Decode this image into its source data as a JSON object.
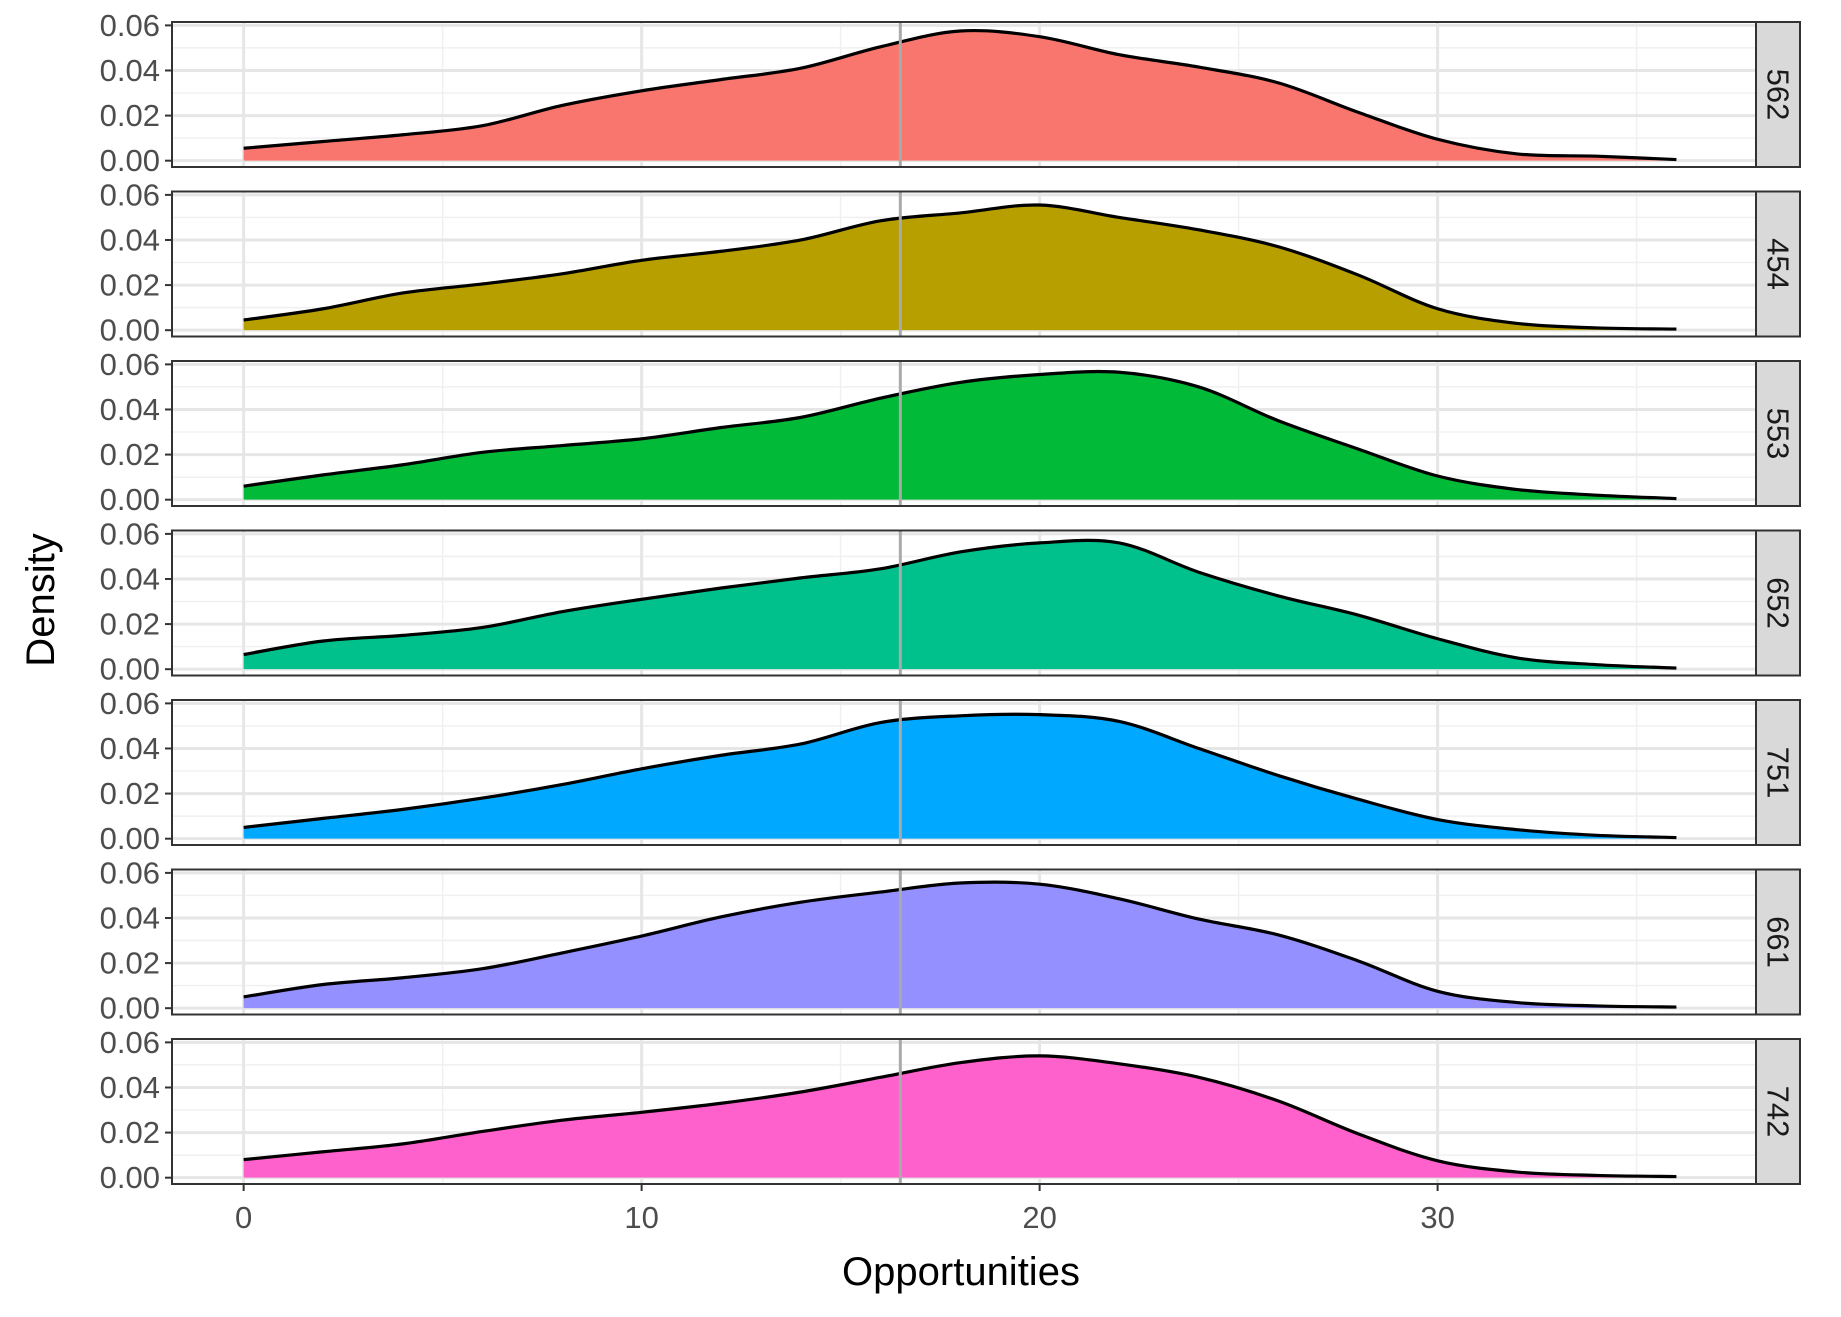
{
  "chart_data": {
    "type": "area",
    "subtype": "faceted density plot",
    "xlabel": "Opportunities",
    "ylabel": "Density",
    "xlim": [
      -1.8,
      38
    ],
    "ylim": [
      -0.0028,
      0.0615
    ],
    "x_ticks": [
      0,
      10,
      20,
      30
    ],
    "x_tick_labels": [
      "0",
      "10",
      "20",
      "30"
    ],
    "y_ticks": [
      0,
      0.02,
      0.04,
      0.06
    ],
    "y_tick_labels": [
      "0.00",
      "0.02",
      "0.04",
      "0.06"
    ],
    "grid": true,
    "reference_line": {
      "x": 16.5,
      "color": "#aaaaaa"
    },
    "x": [
      0,
      2,
      4,
      6,
      8,
      10,
      12,
      14,
      16,
      18,
      20,
      22,
      24,
      26,
      28,
      30,
      32,
      34,
      36
    ],
    "panels": [
      {
        "name": "562",
        "color": "#F8766D",
        "values": [
          0.0055,
          0.0085,
          0.0115,
          0.0155,
          0.0245,
          0.031,
          0.036,
          0.041,
          0.0505,
          0.0575,
          0.055,
          0.047,
          0.0415,
          0.0345,
          0.0215,
          0.0095,
          0.003,
          0.002,
          0.0005
        ]
      },
      {
        "name": "454",
        "color": "#B79F00",
        "values": [
          0.0045,
          0.0095,
          0.0165,
          0.0205,
          0.025,
          0.031,
          0.035,
          0.04,
          0.0485,
          0.052,
          0.0555,
          0.05,
          0.0445,
          0.037,
          0.0245,
          0.0095,
          0.003,
          0.001,
          0.0005
        ]
      },
      {
        "name": "553",
        "color": "#00BA38",
        "values": [
          0.006,
          0.011,
          0.0155,
          0.021,
          0.024,
          0.027,
          0.032,
          0.0365,
          0.045,
          0.052,
          0.0555,
          0.0565,
          0.05,
          0.035,
          0.0225,
          0.0105,
          0.0045,
          0.002,
          0.0005
        ]
      },
      {
        "name": "652",
        "color": "#00C08B",
        "values": [
          0.0065,
          0.0125,
          0.015,
          0.0185,
          0.0255,
          0.031,
          0.036,
          0.0405,
          0.0445,
          0.052,
          0.056,
          0.056,
          0.043,
          0.0325,
          0.024,
          0.0135,
          0.005,
          0.002,
          0.0005
        ]
      },
      {
        "name": "751",
        "color": "#00A9FF",
        "values": [
          0.005,
          0.009,
          0.013,
          0.018,
          0.024,
          0.031,
          0.037,
          0.042,
          0.0515,
          0.0545,
          0.055,
          0.052,
          0.04,
          0.028,
          0.0175,
          0.0085,
          0.004,
          0.0015,
          0.0005
        ]
      },
      {
        "name": "661",
        "color": "#9590FF",
        "values": [
          0.005,
          0.0105,
          0.0135,
          0.0175,
          0.0245,
          0.032,
          0.0405,
          0.047,
          0.0515,
          0.0555,
          0.055,
          0.0485,
          0.0395,
          0.0325,
          0.021,
          0.0075,
          0.0025,
          0.001,
          0.0005
        ]
      },
      {
        "name": "742",
        "color": "#FF61CC",
        "values": [
          0.008,
          0.0115,
          0.015,
          0.0205,
          0.0255,
          0.029,
          0.033,
          0.038,
          0.0445,
          0.051,
          0.054,
          0.0505,
          0.0445,
          0.034,
          0.0195,
          0.0075,
          0.0025,
          0.001,
          0.0005
        ]
      }
    ]
  }
}
